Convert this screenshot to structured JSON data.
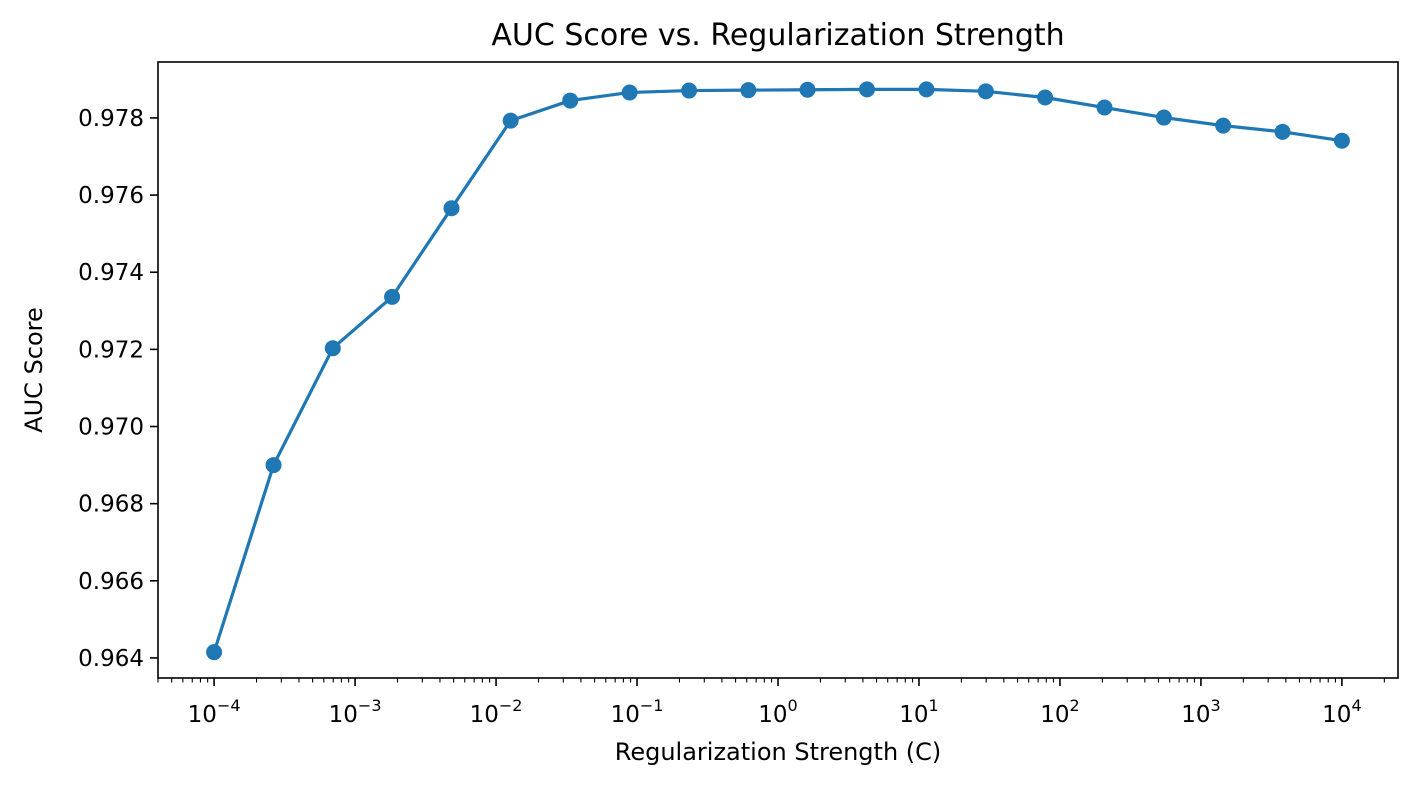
{
  "chart_data": {
    "type": "line",
    "title": "AUC Score vs. Regularization Strength",
    "xlabel": "Regularization Strength (C)",
    "ylabel": "AUC Score",
    "xscale": "log",
    "xlim": [
      4e-05,
      25000
    ],
    "ylim": [
      0.96348,
      0.97945
    ],
    "grid": false,
    "legend": "none",
    "colors": {
      "series": "#1f77b4",
      "axis": "#000000"
    },
    "x_ticks": [
      {
        "base": "10",
        "exp": "−4",
        "value": 0.0001
      },
      {
        "base": "10",
        "exp": "−3",
        "value": 0.001
      },
      {
        "base": "10",
        "exp": "−2",
        "value": 0.01
      },
      {
        "base": "10",
        "exp": "−1",
        "value": 0.1
      },
      {
        "base": "10",
        "exp": "0",
        "value": 1
      },
      {
        "base": "10",
        "exp": "1",
        "value": 10
      },
      {
        "base": "10",
        "exp": "2",
        "value": 100
      },
      {
        "base": "10",
        "exp": "3",
        "value": 1000
      },
      {
        "base": "10",
        "exp": "4",
        "value": 10000
      }
    ],
    "y_ticks": [
      {
        "label": "0.964",
        "value": 0.964
      },
      {
        "label": "0.966",
        "value": 0.966
      },
      {
        "label": "0.968",
        "value": 0.968
      },
      {
        "label": "0.970",
        "value": 0.97
      },
      {
        "label": "0.972",
        "value": 0.972
      },
      {
        "label": "0.974",
        "value": 0.974
      },
      {
        "label": "0.976",
        "value": 0.976
      },
      {
        "label": "0.978",
        "value": 0.978
      }
    ],
    "series": [
      {
        "x": [
          0.0001,
          0.000264,
          0.000695,
          0.00183,
          0.00483,
          0.0127,
          0.0336,
          0.0886,
          0.234,
          0.616,
          1.62,
          4.28,
          11.3,
          29.8,
          78.5,
          207,
          546,
          1438,
          3793,
          10000
        ],
        "y": [
          0.96415,
          0.969,
          0.97203,
          0.97336,
          0.97566,
          0.97793,
          0.97845,
          0.97866,
          0.97871,
          0.97872,
          0.97873,
          0.97874,
          0.97874,
          0.97869,
          0.97853,
          0.97827,
          0.97801,
          0.9778,
          0.97764,
          0.97741
        ]
      }
    ]
  }
}
